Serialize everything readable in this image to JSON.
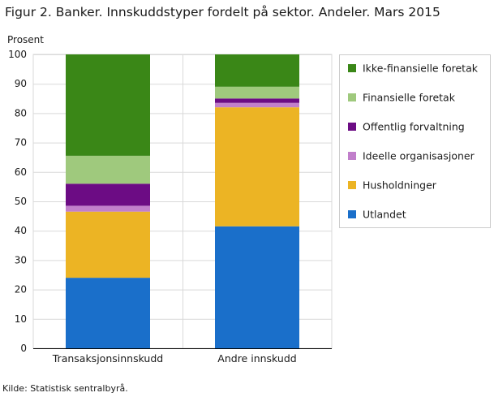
{
  "chart_data": {
    "type": "bar",
    "stacked": true,
    "title": "Figur 2. Banker. Innskuddstyper fordelt på sektor. Andeler. Mars 2015",
    "ylabel": "Prosent",
    "ylim": [
      0,
      100
    ],
    "yticks": [
      0,
      10,
      20,
      30,
      40,
      50,
      60,
      70,
      80,
      90,
      100
    ],
    "categories": [
      "Transaksjonsinnskudd",
      "Andre innskudd"
    ],
    "series": [
      {
        "name": "Utlandet",
        "color": "#1a6fca",
        "values": [
          24,
          41.5
        ]
      },
      {
        "name": "Husholdninger",
        "color": "#ecb424",
        "values": [
          22.5,
          40.5
        ]
      },
      {
        "name": "Ideelle organisasjoner",
        "color": "#c17fcb",
        "values": [
          2,
          1.5
        ]
      },
      {
        "name": "Offentlig forvaltning",
        "color": "#6c0c84",
        "values": [
          7.5,
          1.5
        ]
      },
      {
        "name": "Finansielle foretak",
        "color": "#9fc97d",
        "values": [
          9.5,
          4
        ]
      },
      {
        "name": "Ikke-finansielle foretak",
        "color": "#3a8717",
        "values": [
          34.5,
          11
        ]
      }
    ],
    "legend_position": "right",
    "grid": true
  },
  "footer": {
    "source": "Kilde: Statistisk sentralbyrå."
  }
}
